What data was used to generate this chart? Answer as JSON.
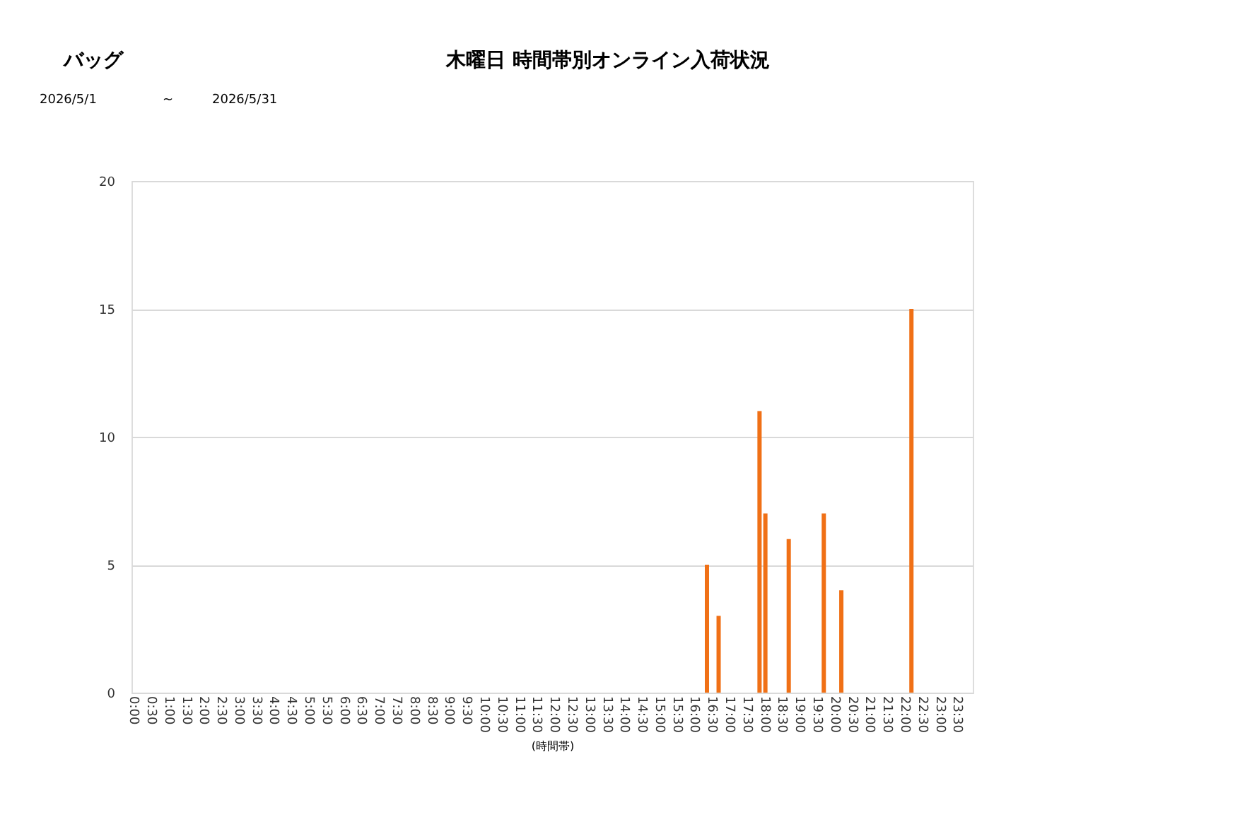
{
  "chart_data": {
    "type": "bar",
    "title": "木曜日 時間帯別オンライン入荷状況",
    "annotations": [
      "バッグ",
      "2026/5/1",
      "~",
      "2026/5/31"
    ],
    "xlabel": "(時間帯)",
    "categories": [
      "0:00",
      null,
      null,
      "0:30",
      null,
      null,
      "1:00",
      null,
      null,
      "1:30",
      null,
      null,
      "2:00",
      null,
      null,
      "2:30",
      null,
      null,
      "3:00",
      null,
      null,
      "3:30",
      null,
      null,
      "4:00",
      null,
      null,
      "4:30",
      null,
      null,
      "5:00",
      null,
      null,
      "5:30",
      null,
      null,
      "6:00",
      null,
      null,
      "6:30",
      null,
      null,
      "7:00",
      null,
      null,
      "7:30",
      null,
      null,
      "8:00",
      null,
      null,
      "8:30",
      null,
      null,
      "9:00",
      null,
      null,
      "9:30",
      null,
      null,
      "10:00",
      null,
      null,
      "10:30",
      null,
      null,
      "11:00",
      null,
      null,
      "11:30",
      null,
      null,
      "12:00",
      null,
      null,
      "12:30",
      null,
      null,
      "13:00",
      null,
      null,
      "13:30",
      null,
      null,
      "14:00",
      null,
      null,
      "14:30",
      null,
      null,
      "15:00",
      null,
      null,
      "15:30",
      null,
      null,
      "16:00",
      null,
      null,
      "16:30",
      null,
      null,
      "17:00",
      null,
      null,
      "17:30",
      null,
      null,
      "18:00",
      null,
      null,
      "18:30",
      null,
      null,
      "19:00",
      null,
      null,
      "19:30",
      null,
      null,
      "20:00",
      null,
      null,
      "20:30",
      null,
      null,
      "21:00",
      null,
      null,
      "21:30",
      null,
      null,
      "22:00",
      null,
      null,
      "22:30",
      null,
      null,
      "23:00",
      null,
      null,
      "23:30",
      null,
      null
    ],
    "values": [
      0,
      0,
      0,
      0,
      0,
      0,
      0,
      0,
      0,
      0,
      0,
      0,
      0,
      0,
      0,
      0,
      0,
      0,
      0,
      0,
      0,
      0,
      0,
      0,
      0,
      0,
      0,
      0,
      0,
      0,
      0,
      0,
      0,
      0,
      0,
      0,
      0,
      0,
      0,
      0,
      0,
      0,
      0,
      0,
      0,
      0,
      0,
      0,
      0,
      0,
      0,
      0,
      0,
      0,
      0,
      0,
      0,
      0,
      0,
      0,
      0,
      0,
      0,
      0,
      0,
      0,
      0,
      0,
      0,
      0,
      0,
      0,
      0,
      0,
      0,
      0,
      0,
      0,
      0,
      0,
      0,
      0,
      0,
      0,
      0,
      0,
      0,
      0,
      0,
      0,
      0,
      0,
      0,
      0,
      0,
      0,
      0,
      0,
      5,
      0,
      3,
      0,
      0,
      0,
      0,
      0,
      0,
      11,
      7,
      0,
      0,
      0,
      6,
      0,
      0,
      0,
      0,
      0,
      7,
      0,
      0,
      4,
      0,
      0,
      0,
      0,
      0,
      0,
      0,
      0,
      0,
      0,
      0,
      15,
      0,
      0,
      0,
      0,
      0,
      0,
      0,
      0,
      0,
      0
    ],
    "color": "#f07016",
    "ylim": [
      0,
      20
    ],
    "yticks": [
      0,
      5,
      10,
      15,
      20
    ],
    "grid": "y"
  }
}
